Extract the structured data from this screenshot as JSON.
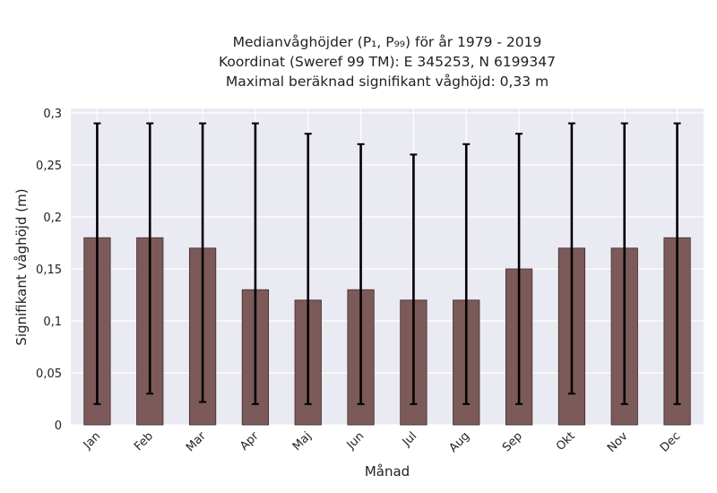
{
  "chart_data": {
    "type": "bar",
    "title_lines": [
      "Medianvåghöjder (P₁, P₉₉) för år 1979 - 2019",
      "Koordinat (Sweref 99 TM): E 345253, N 6199347",
      "Maximal beräknad signifikant våghöjd: 0,33 m"
    ],
    "xlabel": "Månad",
    "ylabel": "Signifikant våghöjd (m)",
    "categories": [
      "Jan",
      "Feb",
      "Mar",
      "Apr",
      "Maj",
      "Jun",
      "Jul",
      "Aug",
      "Sep",
      "Okt",
      "Nov",
      "Dec"
    ],
    "values": [
      0.18,
      0.18,
      0.17,
      0.13,
      0.12,
      0.13,
      0.12,
      0.12,
      0.15,
      0.17,
      0.17,
      0.18
    ],
    "error_low": [
      0.02,
      0.03,
      0.022,
      0.02,
      0.02,
      0.02,
      0.02,
      0.02,
      0.02,
      0.03,
      0.02,
      0.02
    ],
    "error_high": [
      0.29,
      0.29,
      0.29,
      0.29,
      0.28,
      0.27,
      0.26,
      0.27,
      0.28,
      0.29,
      0.29,
      0.29
    ],
    "ylim": [
      0,
      0.3
    ],
    "yticks": [
      0,
      0.05,
      0.1,
      0.15,
      0.2,
      0.25,
      0.3
    ],
    "ytick_labels": [
      "0",
      "0,05",
      "0,1",
      "0,15",
      "0,2",
      "0,25",
      "0,3"
    ],
    "grid": true,
    "colors": {
      "bar": "#7d5a5a",
      "bar_edge": "#3d2b2b",
      "error_bar": "#000000",
      "plot_background": "#eaeaf2",
      "grid": "#ffffff"
    }
  }
}
